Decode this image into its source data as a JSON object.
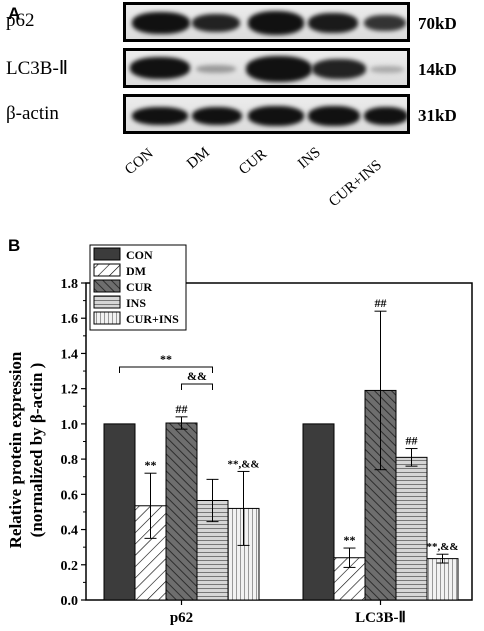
{
  "panel_a": {
    "letter": "A",
    "rows": [
      {
        "label": "p62",
        "size": "70kD"
      },
      {
        "label": "LC3B-Ⅱ",
        "size": "14kD"
      },
      {
        "label": "β-actin",
        "size": "31kD"
      }
    ],
    "lanes": [
      "CON",
      "DM",
      "CUR",
      "INS",
      "CUR+INS"
    ]
  },
  "panel_b": {
    "letter": "B"
  },
  "chart_data": {
    "type": "bar",
    "categories": [
      "p62",
      "LC3B-Ⅱ"
    ],
    "series": [
      {
        "name": "CON",
        "values": [
          1.0,
          1.0
        ],
        "errors": [
          0,
          0
        ],
        "labels": [
          "",
          ""
        ],
        "pattern": "solid-dark"
      },
      {
        "name": "DM",
        "values": [
          0.535,
          0.24
        ],
        "errors": [
          0.185,
          0.055
        ],
        "labels": [
          "**",
          "**"
        ],
        "pattern": "diag-light"
      },
      {
        "name": "CUR",
        "values": [
          1.005,
          1.19
        ],
        "errors": [
          0.035,
          0.45
        ],
        "labels": [
          "##",
          "##"
        ],
        "pattern": "diag-dark"
      },
      {
        "name": "INS",
        "values": [
          0.565,
          0.81
        ],
        "errors": [
          0.12,
          0.05
        ],
        "labels": [
          "",
          "##"
        ],
        "pattern": "horizontal"
      },
      {
        "name": "CUR+INS",
        "values": [
          0.52,
          0.235
        ],
        "errors": [
          0.21,
          0.025
        ],
        "labels": [
          "**,&&",
          "**,&&"
        ],
        "pattern": "vertical"
      }
    ],
    "ylabel": "Relative protein expression",
    "ylabel2": "(normalized by β-actin )",
    "ylim": [
      0.0,
      1.8
    ],
    "yticks": [
      "0.0",
      "0.2",
      "0.4",
      "0.6",
      "0.8",
      "1.0",
      "1.2",
      "1.4",
      "1.6",
      "1.8"
    ],
    "brackets": [
      {
        "label": "**",
        "from": "CON",
        "to": "INS",
        "category": "p62"
      },
      {
        "label": "&&",
        "from": "CUR",
        "to": "INS",
        "category": "p62"
      }
    ],
    "legend_position": "top-left",
    "grid": false
  }
}
